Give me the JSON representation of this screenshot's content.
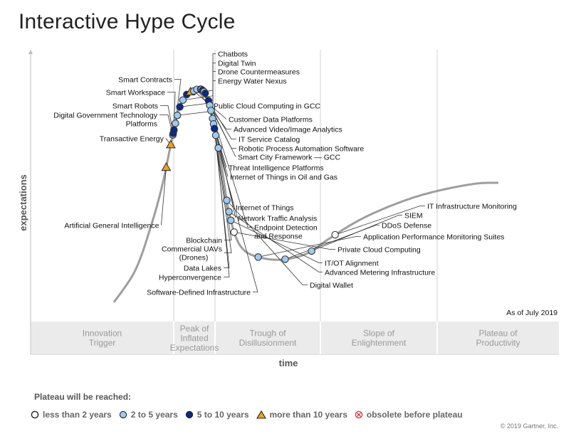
{
  "title": "Interactive Hype Cycle",
  "chart_data": {
    "type": "hype-cycle",
    "xlabel": "time",
    "ylabel": "expectations",
    "as_of": "As of July 2019",
    "phases": [
      {
        "label": [
          "Innovation",
          "Trigger"
        ]
      },
      {
        "label": [
          "Peak of",
          "Inflated",
          "Expectations"
        ]
      },
      {
        "label": [
          "Trough of",
          "Disillusionment"
        ]
      },
      {
        "label": [
          "Slope of",
          "Enlightenment"
        ]
      },
      {
        "label": [
          "Plateau of",
          "Productivity"
        ]
      }
    ],
    "items": [
      {
        "name": "Artificial General Intelligence",
        "t": 0.215,
        "cat": "more than 10 years"
      },
      {
        "name": "Transactive Energy",
        "t": 0.249,
        "cat": "more than 10 years"
      },
      {
        "name": "Digital Government Technology Platforms",
        "t": 0.2635,
        "cat": "2 to 5 years"
      },
      {
        "name": "Smart Robots",
        "t": 0.266,
        "cat": "5 to 10 years"
      },
      {
        "name": "Smart Workspace",
        "t": 0.271,
        "cat": "5 to 10 years"
      },
      {
        "name": "Smart Contracts",
        "t": 0.281,
        "cat": "2 to 5 years"
      },
      {
        "name": "Chatbots",
        "t": 0.293,
        "cat": "2 to 5 years"
      },
      {
        "name": "Digital Twin",
        "t": 0.306,
        "cat": "5 to 10 years"
      },
      {
        "name": "Drone Countermeasures",
        "t": 0.317,
        "cat": "2 to 5 years"
      },
      {
        "name": "Energy Water Nexus",
        "t": 0.327,
        "cat": "5 to 10 years"
      },
      {
        "name": "Public Cloud Computing in GCC",
        "t": 0.334,
        "cat": "more than 10 years"
      },
      {
        "name": "Customer Data Platforms",
        "t": 0.339,
        "cat": "2 to 5 years"
      },
      {
        "name": "Advanced Video/Image Analytics",
        "t": 0.344,
        "cat": "2 to 5 years"
      },
      {
        "name": "IT Service Catalog",
        "t": 0.35,
        "cat": "5 to 10 years"
      },
      {
        "name": "Robotic Process Automation Software",
        "t": 0.351,
        "cat": "less than 2 years"
      },
      {
        "name": "Smart City Framework — GCC",
        "t": 0.353,
        "cat": "5 to 10 years"
      },
      {
        "name": "Threat Intelligence Platforms",
        "t": 0.356,
        "cat": "2 to 5 years"
      },
      {
        "name": "Internet of Things in Oil and Gas",
        "t": 0.359,
        "cat": "5 to 10 years"
      },
      {
        "name": "Internet of Things",
        "t": 0.371,
        "cat": "5 to 10 years"
      },
      {
        "name": "Network Traffic Analysis",
        "t": 0.378,
        "cat": "2 to 5 years"
      },
      {
        "name": "Endpoint Detection and Response",
        "t": 0.386,
        "cat": "2 to 5 years"
      },
      {
        "name": "Blockchain",
        "t": 0.398,
        "cat": "2 to 5 years"
      },
      {
        "name": "Commercial UAVs (Drones)",
        "t": 0.406,
        "cat": "2 to 5 years"
      },
      {
        "name": "Data Lakes",
        "t": 0.413,
        "cat": "5 to 10 years"
      },
      {
        "name": "Hyperconvergence",
        "t": 0.423,
        "cat": "2 to 5 years"
      },
      {
        "name": "Software-Defined Infrastructure",
        "t": 0.442,
        "cat": "2 to 5 years"
      },
      {
        "name": "Digital Wallet",
        "t": 0.52,
        "cat": "2 to 5 years"
      },
      {
        "name": "Advanced Metering Infrastructure",
        "t": 0.537,
        "cat": "2 to 5 years"
      },
      {
        "name": "IT/OT Alignment",
        "t": 0.55,
        "cat": "2 to 5 years"
      },
      {
        "name": "Private Cloud Computing",
        "t": 0.568,
        "cat": "less than 2 years"
      },
      {
        "name": "Application Performance Monitoring Suites",
        "t": 0.622,
        "cat": "2 to 5 years"
      },
      {
        "name": "DDoS Defense",
        "t": 0.662,
        "cat": "2 to 5 years"
      },
      {
        "name": "SIEM",
        "t": 0.703,
        "cat": "2 to 5 years"
      },
      {
        "name": "IT Infrastructure Monitoring",
        "t": 0.745,
        "cat": "less than 2 years"
      }
    ],
    "colors": {
      "curve": "#9e9e9e",
      "less than 2 years": "#ffffff",
      "2 to 5 years": "#9ecbf0",
      "5 to 10 years": "#0a2a8a",
      "more than 10 years": "#f0a020",
      "obsolete before plateau": "#e03030"
    }
  },
  "legend": {
    "title": "Plateau will be reached:",
    "items": [
      {
        "label": "less than 2 years",
        "icon": "circle-open-icon"
      },
      {
        "label": "2 to 5 years",
        "icon": "circle-light-blue-icon"
      },
      {
        "label": "5 to 10 years",
        "icon": "circle-dark-blue-icon"
      },
      {
        "label": "more than 10 years",
        "icon": "triangle-orange-icon"
      },
      {
        "label": "obsolete before plateau",
        "icon": "circle-x-red-icon"
      }
    ]
  },
  "copyright": "© 2019 Gartner, Inc."
}
